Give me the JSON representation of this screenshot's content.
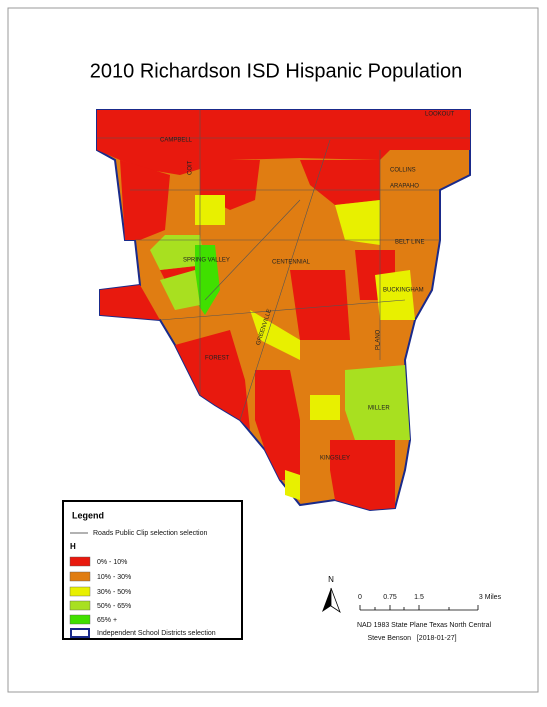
{
  "title": "2010 Richardson ISD Hispanic Population",
  "map": {
    "road_labels": [
      "CAMPBELL",
      "LOOKOUT",
      "COLLINS",
      "ARAPAHO",
      "BELT LINE",
      "SPRING VALLEY",
      "CENTENNIAL",
      "BUCKINGHAM",
      "FOREST",
      "MILLER",
      "KINGSLEY",
      "GREENVILLE",
      "COIT",
      "PLANO"
    ]
  },
  "legend": {
    "title": "Legend",
    "roads": "Roads Public Clip selection selection",
    "field": "H",
    "classes": [
      "0% - 10%",
      "10% - 30%",
      "30% - 50%",
      "50% - 65%",
      "65% +"
    ],
    "districts": "Independent School Districts selection"
  },
  "north": "N",
  "scale": {
    "labels": [
      "0",
      "0.75",
      "1.5",
      "3 Miles"
    ]
  },
  "credits": {
    "projection": "NAD 1983 State Plane Texas North Central",
    "author": "Steve Benson   [2018-01-27]"
  }
}
